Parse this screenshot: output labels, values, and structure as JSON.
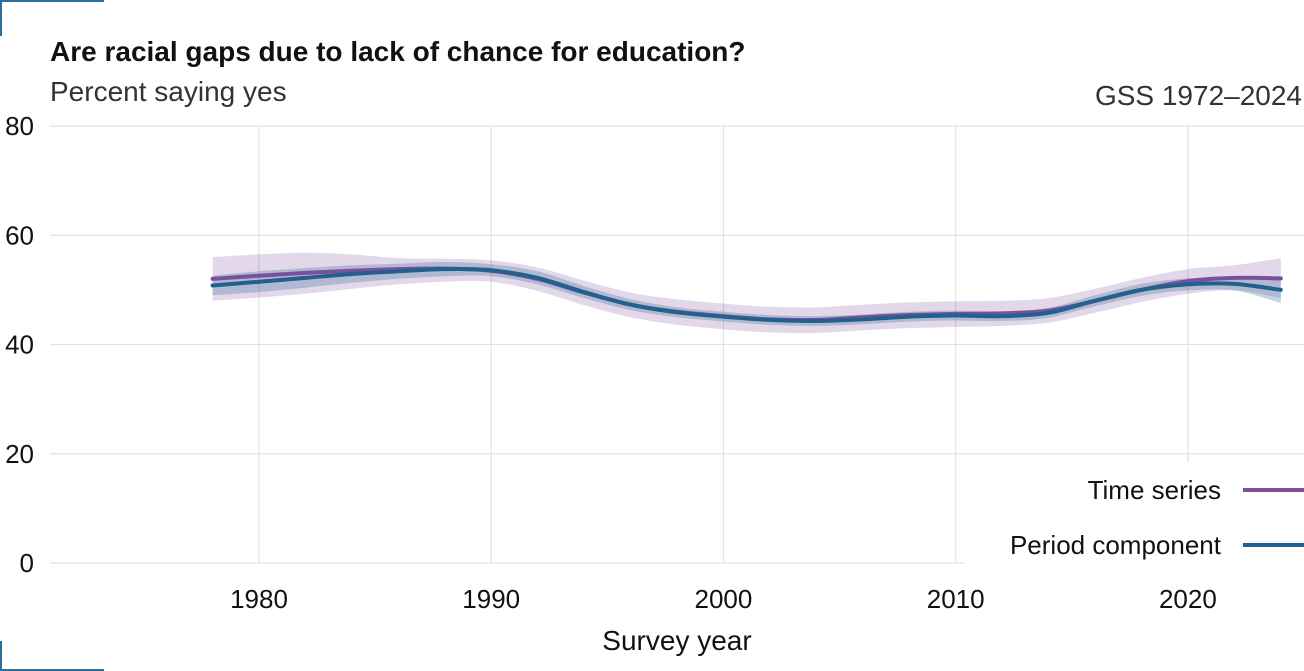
{
  "header": {
    "title": "Are racial gaps due to lack of chance for education?",
    "subtitle": "Percent saying yes",
    "caption": "GSS 1972–2024"
  },
  "chart_data": {
    "type": "line",
    "title": "Are racial gaps due to lack of chance for education?",
    "subtitle": "Percent saying yes",
    "caption": "GSS 1972–2024",
    "xlabel": "Survey year",
    "ylabel": "",
    "xlim": [
      1971,
      2025
    ],
    "ylim": [
      0,
      80
    ],
    "x_ticks": [
      1980,
      1990,
      2000,
      2010,
      2020
    ],
    "y_ticks": [
      0,
      20,
      40,
      60,
      80
    ],
    "grid": true,
    "legend_position": "bottom-right",
    "x": [
      1978,
      1980,
      1982,
      1984,
      1986,
      1988,
      1990,
      1992,
      1994,
      1996,
      1998,
      2000,
      2002,
      2004,
      2006,
      2008,
      2010,
      2012,
      2014,
      2016,
      2018,
      2020,
      2022,
      2024
    ],
    "series": [
      {
        "name": "Time series",
        "color": "#7b4f9e",
        "values": [
          52.0,
          52.6,
          53.1,
          53.5,
          53.8,
          53.9,
          53.5,
          52.0,
          49.5,
          47.3,
          46.0,
          45.2,
          44.6,
          44.5,
          45.0,
          45.4,
          45.6,
          45.7,
          46.2,
          48.0,
          50.0,
          51.6,
          52.2,
          52.1
        ],
        "lower": [
          48.0,
          48.6,
          49.3,
          50.2,
          51.0,
          51.5,
          51.5,
          49.8,
          47.2,
          45.0,
          43.6,
          42.8,
          42.2,
          42.1,
          42.6,
          43.0,
          43.2,
          43.4,
          44.0,
          45.8,
          47.8,
          49.3,
          49.9,
          48.5
        ],
        "upper": [
          56.0,
          56.5,
          56.8,
          56.5,
          55.8,
          55.7,
          55.4,
          54.1,
          51.7,
          49.5,
          48.3,
          47.5,
          46.9,
          46.8,
          47.3,
          47.7,
          47.9,
          48.0,
          48.5,
          50.2,
          52.2,
          53.8,
          54.5,
          55.8
        ]
      },
      {
        "name": "Period component",
        "color": "#21618c",
        "values": [
          50.8,
          51.5,
          52.2,
          52.9,
          53.4,
          53.8,
          53.6,
          52.2,
          49.6,
          47.3,
          45.9,
          45.1,
          44.5,
          44.3,
          44.6,
          45.1,
          45.3,
          45.2,
          45.8,
          48.0,
          50.0,
          51.0,
          51.1,
          50.0
        ],
        "lower": [
          49.0,
          49.6,
          50.4,
          51.3,
          52.0,
          52.5,
          52.5,
          51.0,
          48.5,
          46.3,
          45.0,
          44.2,
          43.6,
          43.4,
          43.7,
          44.2,
          44.4,
          44.3,
          44.9,
          47.0,
          48.9,
          49.9,
          49.9,
          47.6
        ],
        "upper": [
          52.6,
          53.4,
          54.0,
          54.5,
          54.8,
          55.1,
          54.7,
          53.4,
          50.7,
          48.3,
          46.8,
          46.0,
          45.4,
          45.2,
          45.5,
          46.0,
          46.2,
          46.1,
          46.7,
          49.0,
          51.1,
          52.1,
          52.3,
          52.4
        ]
      }
    ]
  }
}
